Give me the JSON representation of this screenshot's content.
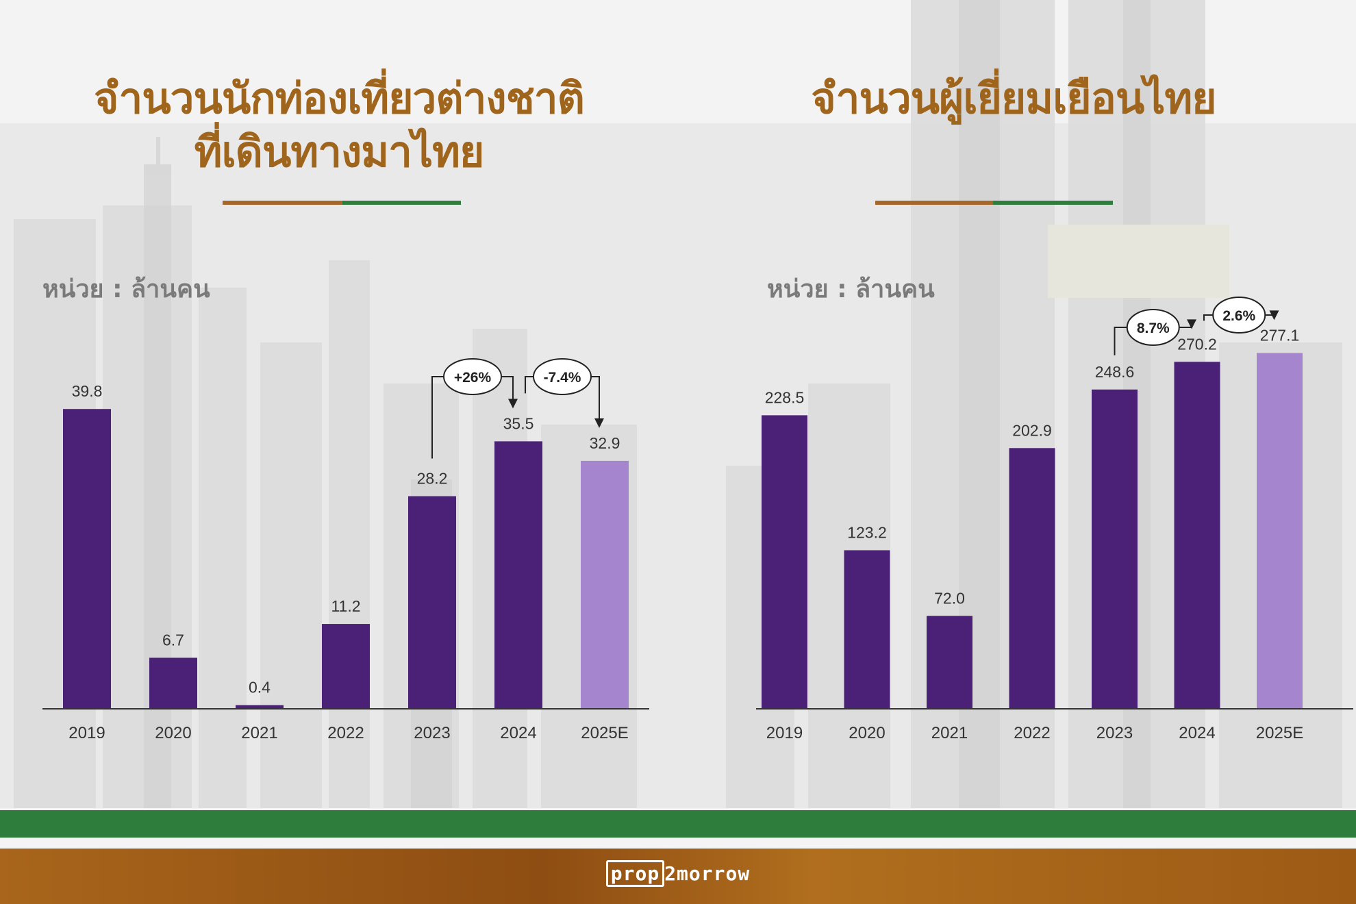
{
  "brand": {
    "logo_part1": "prop",
    "logo_part2": "2morrow"
  },
  "colors": {
    "title": "#a0651d",
    "bar": "#4a2177",
    "bar_estimate": "#a585cd",
    "line_brown": "#a5682a",
    "line_green": "#2e7d3c"
  },
  "panels": [
    {
      "title_line1": "จำนวนนักท่องเที่ยวต่างชาติ",
      "title_line2": "ที่เดินทางมาไทย",
      "unit": "หน่วย : ล้านคน"
    },
    {
      "title_line1": "จำนวนผู้เยี่ยมเยือนไทย",
      "title_line2": "",
      "unit": "หน่วย : ล้านคน"
    }
  ],
  "chart_data": [
    {
      "type": "bar",
      "categories": [
        "2019",
        "2020",
        "2021",
        "2022",
        "2023",
        "2024",
        "2025E"
      ],
      "values": [
        39.8,
        6.7,
        0.4,
        11.2,
        28.2,
        35.5,
        32.9
      ],
      "value_labels": [
        "39.8",
        "6.7",
        "0.4",
        "11.2",
        "28.2",
        "35.5",
        "32.9"
      ],
      "estimate_categories": [
        "2025E"
      ],
      "ylim": [
        0,
        40
      ],
      "grid": false,
      "annotations": [
        {
          "from": "2023",
          "to": "2024",
          "label": "+26%"
        },
        {
          "from": "2024",
          "to": "2025E",
          "label": "-7.4%"
        }
      ]
    },
    {
      "type": "bar",
      "categories": [
        "2019",
        "2020",
        "2021",
        "2022",
        "2023",
        "2024",
        "2025E"
      ],
      "values": [
        228.5,
        123.2,
        72.0,
        202.9,
        248.6,
        270.2,
        277.1
      ],
      "value_labels": [
        "228.5",
        "123.2",
        "72.0",
        "202.9",
        "248.6",
        "270.2",
        "277.1"
      ],
      "estimate_categories": [
        "2025E"
      ],
      "ylim": [
        0,
        280
      ],
      "grid": false,
      "annotations": [
        {
          "from": "2023",
          "to": "2024",
          "label": "8.7%"
        },
        {
          "from": "2024",
          "to": "2025E",
          "label": "2.6%"
        }
      ]
    }
  ]
}
